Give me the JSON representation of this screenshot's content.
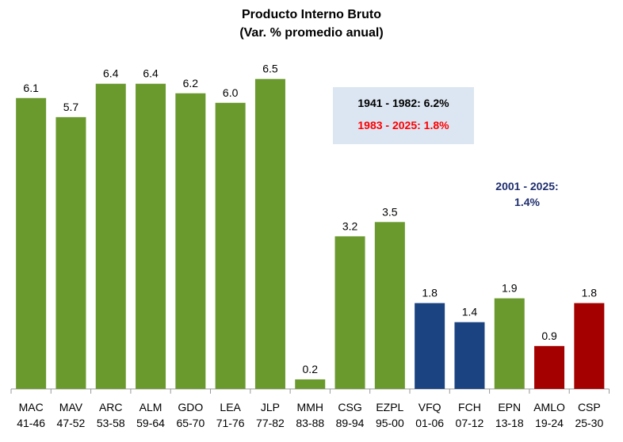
{
  "chart_data": {
    "type": "bar",
    "title": "Producto Interno Bruto",
    "subtitle": "(Var. % promedio anual)",
    "categories": [
      [
        "MAC",
        "41-46"
      ],
      [
        "MAV",
        "47-52"
      ],
      [
        "ARC",
        "53-58"
      ],
      [
        "ALM",
        "59-64"
      ],
      [
        "GDO",
        "65-70"
      ],
      [
        "LEA",
        "71-76"
      ],
      [
        "JLP",
        "77-82"
      ],
      [
        "MMH",
        "83-88"
      ],
      [
        "CSG",
        "89-94"
      ],
      [
        "EZPL",
        "95-00"
      ],
      [
        "VFQ",
        "01-06"
      ],
      [
        "FCH",
        "07-12"
      ],
      [
        "EPN",
        "13-18"
      ],
      [
        "AMLO",
        "19-24"
      ],
      [
        "CSP",
        "25-30"
      ]
    ],
    "values": [
      6.1,
      5.7,
      6.4,
      6.4,
      6.2,
      6.0,
      6.5,
      0.2,
      3.2,
      3.5,
      1.8,
      1.4,
      1.9,
      0.9,
      1.8
    ],
    "value_labels": [
      "6.1",
      "5.7",
      "6.4",
      "6.4",
      "6.2",
      "6.0",
      "6.5",
      "0.2",
      "3.2",
      "3.5",
      "1.8",
      "1.4",
      "1.9",
      "0.9",
      "1.8"
    ],
    "bar_colors": [
      "#6a992e",
      "#6a992e",
      "#6a992e",
      "#6a992e",
      "#6a992e",
      "#6a992e",
      "#6a992e",
      "#6a992e",
      "#6a992e",
      "#6a992e",
      "#1b4382",
      "#1b4382",
      "#6a992e",
      "#a50000",
      "#a50000"
    ],
    "ylim": [
      0,
      7
    ],
    "grid": false,
    "annotations": {
      "period1": "1941 - 1982:  6.2%",
      "period2": "1983 - 2025:  1.8%",
      "period3_line1": "2001 - 2025:",
      "period3_line2": "1.4%"
    },
    "annotation_colors": {
      "period1": "#000000",
      "period2": "#ff0000",
      "period3": "#1f2e6e",
      "box": "#dce6f2"
    }
  }
}
